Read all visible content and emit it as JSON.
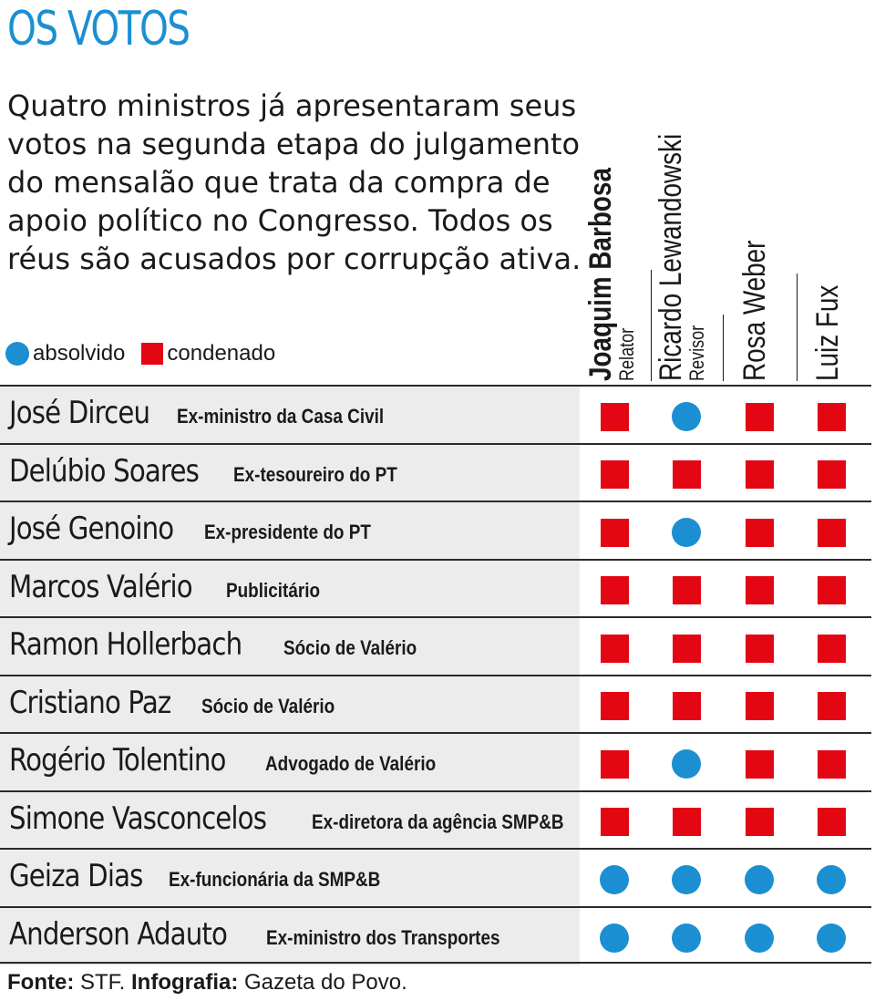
{
  "title": "OS VOTOS",
  "intro": "Quatro ministros já apresentaram seus votos na segunda etapa do julgamento do mensalão que trata da compra de apoio político no Congresso.  Todos os réus são acusados por corrupção ativa.",
  "legend": {
    "absolvido": "absolvido",
    "condenado": "condenado"
  },
  "colors": {
    "absolvido": "#1b8fd2",
    "condenado": "#e30613",
    "title": "#1b8fd2"
  },
  "chart_data": {
    "type": "table",
    "judges": [
      {
        "name": "Joaquim Barbosa",
        "role": "Relator"
      },
      {
        "name": "Ricardo Lewandowski",
        "role": "Revisor"
      },
      {
        "name": "Rosa Weber",
        "role": ""
      },
      {
        "name": "Luiz Fux",
        "role": ""
      }
    ],
    "rows": [
      {
        "name": "José Dirceu",
        "desc": "Ex-ministro da Casa Civil",
        "votes": [
          "condenado",
          "absolvido",
          "condenado",
          "condenado"
        ]
      },
      {
        "name": "Delúbio Soares",
        "desc": "Ex-tesoureiro do PT",
        "votes": [
          "condenado",
          "condenado",
          "condenado",
          "condenado"
        ]
      },
      {
        "name": "José Genoino",
        "desc": "Ex-presidente do PT",
        "votes": [
          "condenado",
          "absolvido",
          "condenado",
          "condenado"
        ]
      },
      {
        "name": "Marcos Valério",
        "desc": "Publicitário",
        "votes": [
          "condenado",
          "condenado",
          "condenado",
          "condenado"
        ]
      },
      {
        "name": "Ramon Hollerbach",
        "desc": "Sócio de Valério",
        "votes": [
          "condenado",
          "condenado",
          "condenado",
          "condenado"
        ]
      },
      {
        "name": "Cristiano Paz",
        "desc": "Sócio de Valério",
        "votes": [
          "condenado",
          "condenado",
          "condenado",
          "condenado"
        ]
      },
      {
        "name": "Rogério Tolentino",
        "desc": "Advogado de Valério",
        "votes": [
          "condenado",
          "absolvido",
          "condenado",
          "condenado"
        ]
      },
      {
        "name": "Simone Vasconcelos",
        "desc": "Ex-diretora da agência SMP&B",
        "votes": [
          "condenado",
          "condenado",
          "condenado",
          "condenado"
        ]
      },
      {
        "name": "Geiza Dias",
        "desc": "Ex-funcionária da SMP&B",
        "votes": [
          "absolvido",
          "absolvido",
          "absolvido",
          "absolvido"
        ]
      },
      {
        "name": "Anderson Adauto",
        "desc": "Ex-ministro dos Transportes",
        "votes": [
          "absolvido",
          "absolvido",
          "absolvido",
          "absolvido"
        ]
      }
    ]
  },
  "source": {
    "fonte_label": "Fonte:",
    "fonte": "STF.",
    "info_label": "Infografia:",
    "info": "Gazeta do Povo."
  }
}
